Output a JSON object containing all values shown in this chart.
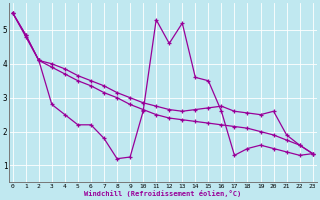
{
  "xlabel": "Windchill (Refroidissement éolien,°C)",
  "bg_color": "#c0e8f0",
  "line_color": "#990099",
  "xlim": [
    -0.3,
    23.3
  ],
  "ylim": [
    0.5,
    5.8
  ],
  "yticks": [
    1,
    2,
    3,
    4,
    5
  ],
  "xticks": [
    0,
    1,
    2,
    3,
    4,
    5,
    6,
    7,
    8,
    9,
    10,
    11,
    12,
    13,
    14,
    15,
    16,
    17,
    18,
    19,
    20,
    21,
    22,
    23
  ],
  "series": [
    {
      "x": [
        0,
        1,
        2,
        3,
        4,
        5,
        6,
        7,
        8,
        9,
        10,
        11,
        12,
        13,
        14,
        15,
        16,
        17,
        18,
        19,
        20,
        21,
        22,
        23
      ],
      "y": [
        5.5,
        4.8,
        4.1,
        2.8,
        2.5,
        2.2,
        2.2,
        1.8,
        1.2,
        1.25,
        2.6,
        5.3,
        4.6,
        5.2,
        3.6,
        3.5,
        2.6,
        1.3,
        1.5,
        1.6,
        1.5,
        1.4,
        1.3,
        1.35
      ]
    },
    {
      "x": [
        0,
        1,
        2,
        3,
        4,
        5,
        6,
        7,
        8,
        9,
        10,
        11,
        12,
        13,
        14,
        15,
        16,
        17,
        18,
        19,
        20,
        21,
        22,
        23
      ],
      "y": [
        5.5,
        4.85,
        4.1,
        4.0,
        3.85,
        3.65,
        3.5,
        3.35,
        3.15,
        3.0,
        2.85,
        2.75,
        2.65,
        2.6,
        2.65,
        2.7,
        2.75,
        2.6,
        2.55,
        2.5,
        2.6,
        1.9,
        1.6,
        1.35
      ]
    },
    {
      "x": [
        0,
        1,
        2,
        3,
        4,
        5,
        6,
        7,
        8,
        9,
        10,
        11,
        12,
        13,
        14,
        15,
        16,
        17,
        18,
        19,
        20,
        21,
        22,
        23
      ],
      "y": [
        5.5,
        4.85,
        4.1,
        3.9,
        3.7,
        3.5,
        3.35,
        3.15,
        3.0,
        2.8,
        2.65,
        2.5,
        2.4,
        2.35,
        2.3,
        2.25,
        2.2,
        2.15,
        2.1,
        2.0,
        1.9,
        1.75,
        1.6,
        1.35
      ]
    }
  ]
}
